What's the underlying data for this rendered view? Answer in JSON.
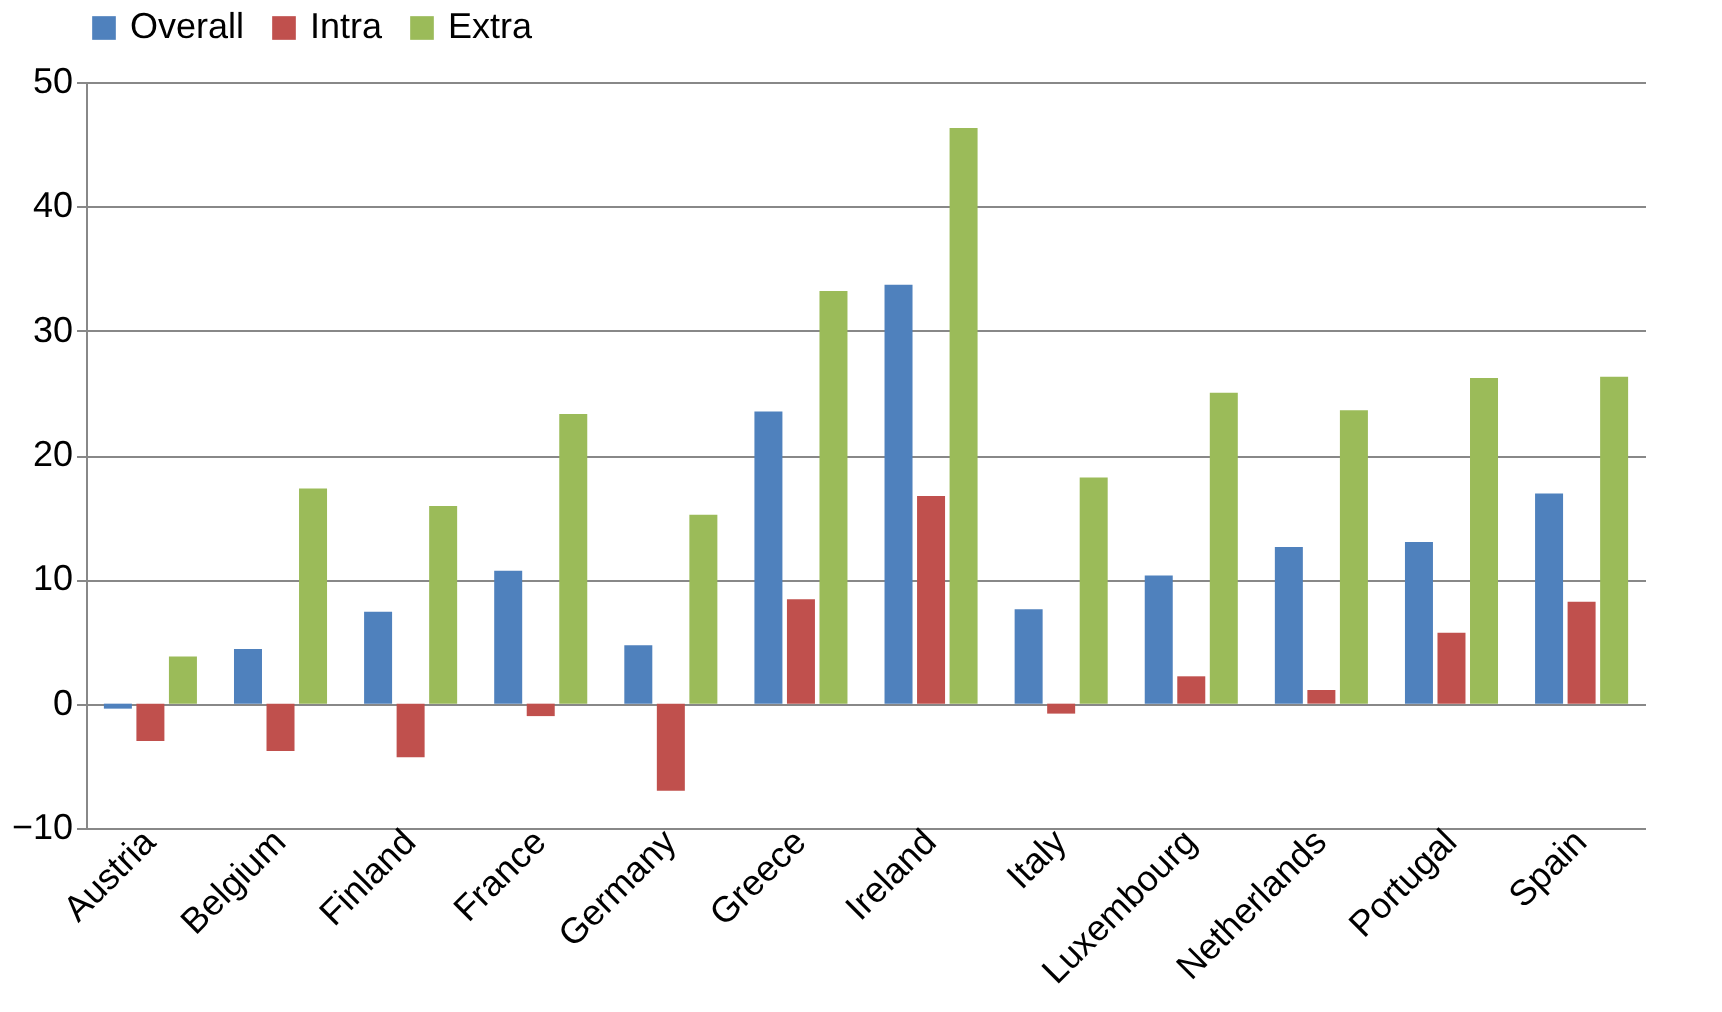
{
  "chart_data": {
    "type": "bar",
    "categories": [
      "Austria",
      "Belgium",
      "Finland",
      "France",
      "Germany",
      "Greece",
      "Ireland",
      "Italy",
      "Luxembourg",
      "Netherlands",
      "Portugal",
      "Spain"
    ],
    "series": [
      {
        "name": "Overall",
        "color": "#4f81bd",
        "values": [
          -0.4,
          4.4,
          7.4,
          10.7,
          4.7,
          23.5,
          33.7,
          7.6,
          10.3,
          12.6,
          13.0,
          16.9
        ]
      },
      {
        "name": "Intra",
        "color": "#c0504d",
        "values": [
          -3.0,
          -3.8,
          -4.3,
          -1.0,
          -7.0,
          8.4,
          16.7,
          -0.8,
          2.2,
          1.1,
          5.7,
          8.2
        ]
      },
      {
        "name": "Extra",
        "color": "#9bbb59",
        "values": [
          3.8,
          17.3,
          15.9,
          23.3,
          15.2,
          33.2,
          46.3,
          18.2,
          25.0,
          23.6,
          26.2,
          26.3
        ]
      }
    ],
    "ylim": [
      -10,
      50
    ],
    "yticks": [
      -10,
      0,
      10,
      20,
      30,
      40,
      50
    ],
    "grid": "y",
    "legend": "top"
  }
}
